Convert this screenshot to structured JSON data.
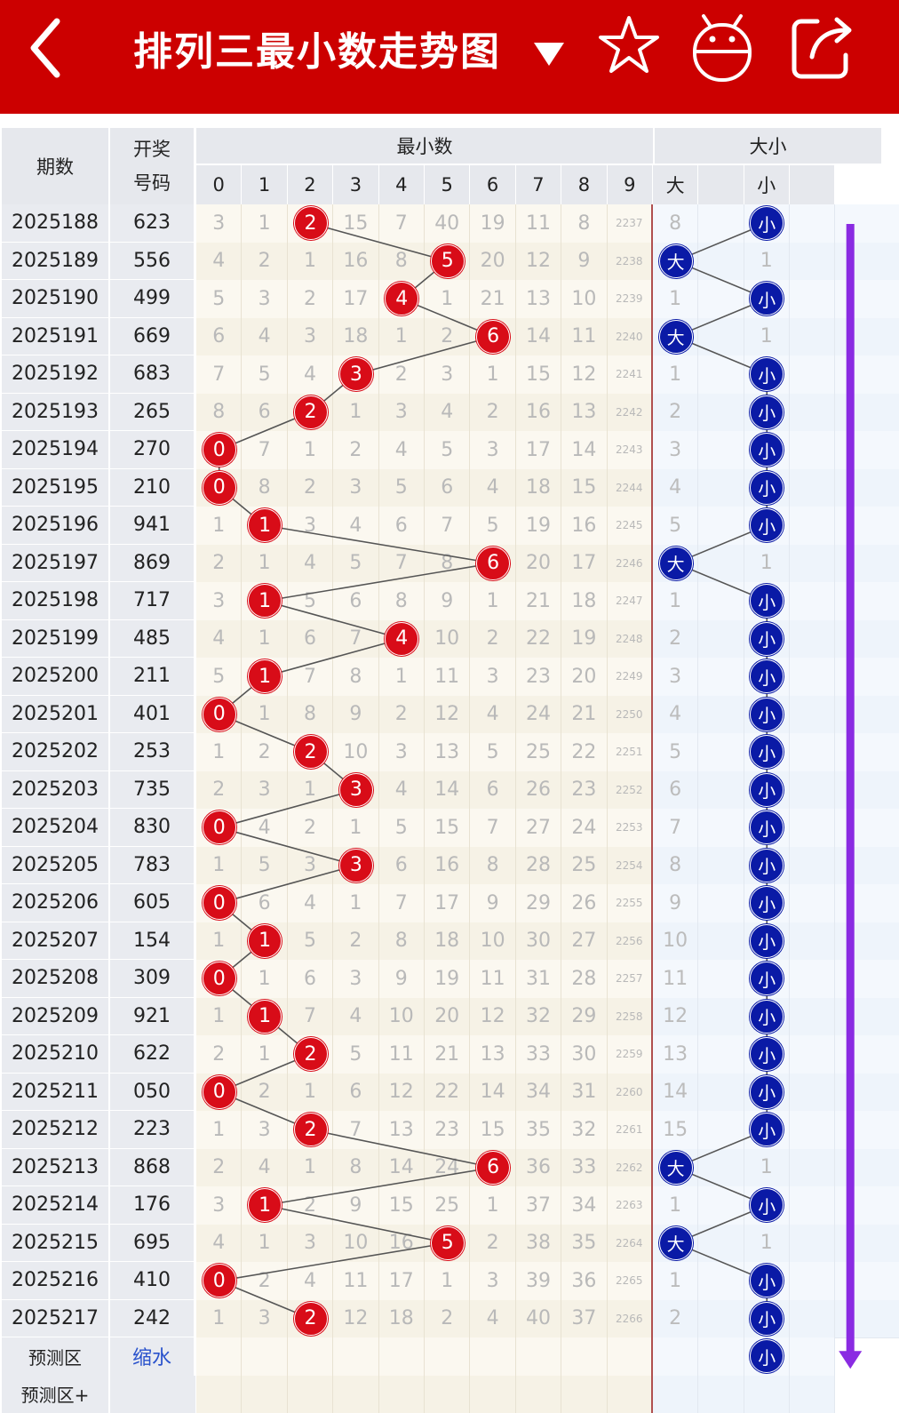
{
  "header": {
    "title": "排列三最小数走势图",
    "dropdown_icon": "triangle-down-icon",
    "back_icon": "back-chevron-icon",
    "icons": [
      "star-icon",
      "android-icon",
      "share-icon"
    ]
  },
  "colors": {
    "brand_red": "#cc0000",
    "ball_red": "#d80c18",
    "ball_blue": "#0a1aa6",
    "trend_arrow": "#8a2be2"
  },
  "table": {
    "col_issue": "期数",
    "col_code_line1": "开奖",
    "col_code_line2": "号码",
    "group_min": "最小数",
    "group_size": "大小",
    "digits": [
      "0",
      "1",
      "2",
      "3",
      "4",
      "5",
      "6",
      "7",
      "8",
      "9"
    ],
    "size_cols": [
      "大",
      "",
      "小",
      ""
    ],
    "rows": [
      {
        "issue": "2025188",
        "code": "623",
        "min": 2,
        "cells": [
          "3",
          "1",
          "2",
          "15",
          "7",
          "40",
          "19",
          "11",
          "8",
          "2237"
        ],
        "size": "small",
        "big_val": "8",
        "small_val": "小"
      },
      {
        "issue": "2025189",
        "code": "556",
        "min": 5,
        "cells": [
          "4",
          "2",
          "1",
          "16",
          "8",
          "5",
          "20",
          "12",
          "9",
          "2238"
        ],
        "size": "big",
        "big_val": "大",
        "small_val": "1"
      },
      {
        "issue": "2025190",
        "code": "499",
        "min": 4,
        "cells": [
          "5",
          "3",
          "2",
          "17",
          "4",
          "1",
          "21",
          "13",
          "10",
          "2239"
        ],
        "size": "small",
        "big_val": "1",
        "small_val": "小"
      },
      {
        "issue": "2025191",
        "code": "669",
        "min": 6,
        "cells": [
          "6",
          "4",
          "3",
          "18",
          "1",
          "2",
          "6",
          "14",
          "11",
          "2240"
        ],
        "size": "big",
        "big_val": "大",
        "small_val": "1"
      },
      {
        "issue": "2025192",
        "code": "683",
        "min": 3,
        "cells": [
          "7",
          "5",
          "4",
          "3",
          "2",
          "3",
          "1",
          "15",
          "12",
          "2241"
        ],
        "size": "small",
        "big_val": "1",
        "small_val": "小"
      },
      {
        "issue": "2025193",
        "code": "265",
        "min": 2,
        "cells": [
          "8",
          "6",
          "2",
          "1",
          "3",
          "4",
          "2",
          "16",
          "13",
          "2242"
        ],
        "size": "small",
        "big_val": "2",
        "small_val": "小"
      },
      {
        "issue": "2025194",
        "code": "270",
        "min": 0,
        "cells": [
          "0",
          "7",
          "1",
          "2",
          "4",
          "5",
          "3",
          "17",
          "14",
          "2243"
        ],
        "size": "small",
        "big_val": "3",
        "small_val": "小"
      },
      {
        "issue": "2025195",
        "code": "210",
        "min": 0,
        "cells": [
          "0",
          "8",
          "2",
          "3",
          "5",
          "6",
          "4",
          "18",
          "15",
          "2244"
        ],
        "size": "small",
        "big_val": "4",
        "small_val": "小"
      },
      {
        "issue": "2025196",
        "code": "941",
        "min": 1,
        "cells": [
          "1",
          "1",
          "3",
          "4",
          "6",
          "7",
          "5",
          "19",
          "16",
          "2245"
        ],
        "size": "small",
        "big_val": "5",
        "small_val": "小"
      },
      {
        "issue": "2025197",
        "code": "869",
        "min": 6,
        "cells": [
          "2",
          "1",
          "4",
          "5",
          "7",
          "8",
          "6",
          "20",
          "17",
          "2246"
        ],
        "size": "big",
        "big_val": "大",
        "small_val": "1"
      },
      {
        "issue": "2025198",
        "code": "717",
        "min": 1,
        "cells": [
          "3",
          "1",
          "5",
          "6",
          "8",
          "9",
          "1",
          "21",
          "18",
          "2247"
        ],
        "size": "small",
        "big_val": "1",
        "small_val": "小"
      },
      {
        "issue": "2025199",
        "code": "485",
        "min": 4,
        "cells": [
          "4",
          "1",
          "6",
          "7",
          "4",
          "10",
          "2",
          "22",
          "19",
          "2248"
        ],
        "size": "small",
        "big_val": "2",
        "small_val": "小"
      },
      {
        "issue": "2025200",
        "code": "211",
        "min": 1,
        "cells": [
          "5",
          "1",
          "7",
          "8",
          "1",
          "11",
          "3",
          "23",
          "20",
          "2249"
        ],
        "size": "small",
        "big_val": "3",
        "small_val": "小"
      },
      {
        "issue": "2025201",
        "code": "401",
        "min": 0,
        "cells": [
          "0",
          "1",
          "8",
          "9",
          "2",
          "12",
          "4",
          "24",
          "21",
          "2250"
        ],
        "size": "small",
        "big_val": "4",
        "small_val": "小"
      },
      {
        "issue": "2025202",
        "code": "253",
        "min": 2,
        "cells": [
          "1",
          "2",
          "2",
          "10",
          "3",
          "13",
          "5",
          "25",
          "22",
          "2251"
        ],
        "size": "small",
        "big_val": "5",
        "small_val": "小"
      },
      {
        "issue": "2025203",
        "code": "735",
        "min": 3,
        "cells": [
          "2",
          "3",
          "1",
          "3",
          "4",
          "14",
          "6",
          "26",
          "23",
          "2252"
        ],
        "size": "small",
        "big_val": "6",
        "small_val": "小"
      },
      {
        "issue": "2025204",
        "code": "830",
        "min": 0,
        "cells": [
          "0",
          "4",
          "2",
          "1",
          "5",
          "15",
          "7",
          "27",
          "24",
          "2253"
        ],
        "size": "small",
        "big_val": "7",
        "small_val": "小"
      },
      {
        "issue": "2025205",
        "code": "783",
        "min": 3,
        "cells": [
          "1",
          "5",
          "3",
          "3",
          "6",
          "16",
          "8",
          "28",
          "25",
          "2254"
        ],
        "size": "small",
        "big_val": "8",
        "small_val": "小"
      },
      {
        "issue": "2025206",
        "code": "605",
        "min": 0,
        "cells": [
          "0",
          "6",
          "4",
          "1",
          "7",
          "17",
          "9",
          "29",
          "26",
          "2255"
        ],
        "size": "small",
        "big_val": "9",
        "small_val": "小"
      },
      {
        "issue": "2025207",
        "code": "154",
        "min": 1,
        "cells": [
          "1",
          "1",
          "5",
          "2",
          "8",
          "18",
          "10",
          "30",
          "27",
          "2256"
        ],
        "size": "small",
        "big_val": "10",
        "small_val": "小"
      },
      {
        "issue": "2025208",
        "code": "309",
        "min": 0,
        "cells": [
          "0",
          "1",
          "6",
          "3",
          "9",
          "19",
          "11",
          "31",
          "28",
          "2257"
        ],
        "size": "small",
        "big_val": "11",
        "small_val": "小"
      },
      {
        "issue": "2025209",
        "code": "921",
        "min": 1,
        "cells": [
          "1",
          "1",
          "7",
          "4",
          "10",
          "20",
          "12",
          "32",
          "29",
          "2258"
        ],
        "size": "small",
        "big_val": "12",
        "small_val": "小"
      },
      {
        "issue": "2025210",
        "code": "622",
        "min": 2,
        "cells": [
          "2",
          "1",
          "2",
          "5",
          "11",
          "21",
          "13",
          "33",
          "30",
          "2259"
        ],
        "size": "small",
        "big_val": "13",
        "small_val": "小"
      },
      {
        "issue": "2025211",
        "code": "050",
        "min": 0,
        "cells": [
          "0",
          "2",
          "1",
          "6",
          "12",
          "22",
          "14",
          "34",
          "31",
          "2260"
        ],
        "size": "small",
        "big_val": "14",
        "small_val": "小"
      },
      {
        "issue": "2025212",
        "code": "223",
        "min": 2,
        "cells": [
          "1",
          "3",
          "2",
          "7",
          "13",
          "23",
          "15",
          "35",
          "32",
          "2261"
        ],
        "size": "small",
        "big_val": "15",
        "small_val": "小"
      },
      {
        "issue": "2025213",
        "code": "868",
        "min": 6,
        "cells": [
          "2",
          "4",
          "1",
          "8",
          "14",
          "24",
          "6",
          "36",
          "33",
          "2262"
        ],
        "size": "big",
        "big_val": "大",
        "small_val": "1"
      },
      {
        "issue": "2025214",
        "code": "176",
        "min": 1,
        "cells": [
          "3",
          "1",
          "2",
          "9",
          "15",
          "25",
          "1",
          "37",
          "34",
          "2263"
        ],
        "size": "small",
        "big_val": "1",
        "small_val": "小"
      },
      {
        "issue": "2025215",
        "code": "695",
        "min": 5,
        "cells": [
          "4",
          "1",
          "3",
          "10",
          "16",
          "5",
          "2",
          "38",
          "35",
          "2264"
        ],
        "size": "big",
        "big_val": "大",
        "small_val": "1"
      },
      {
        "issue": "2025216",
        "code": "410",
        "min": 0,
        "cells": [
          "0",
          "2",
          "4",
          "11",
          "17",
          "1",
          "3",
          "39",
          "36",
          "2265"
        ],
        "size": "small",
        "big_val": "1",
        "small_val": "小"
      },
      {
        "issue": "2025217",
        "code": "242",
        "min": 2,
        "cells": [
          "1",
          "3",
          "2",
          "12",
          "18",
          "2",
          "4",
          "40",
          "37",
          "2266"
        ],
        "size": "small",
        "big_val": "2",
        "small_val": "小"
      }
    ],
    "pred_label": "预测区",
    "pred_link": "缩水",
    "pred_ball": "小",
    "pred2_label": "预测区+"
  }
}
